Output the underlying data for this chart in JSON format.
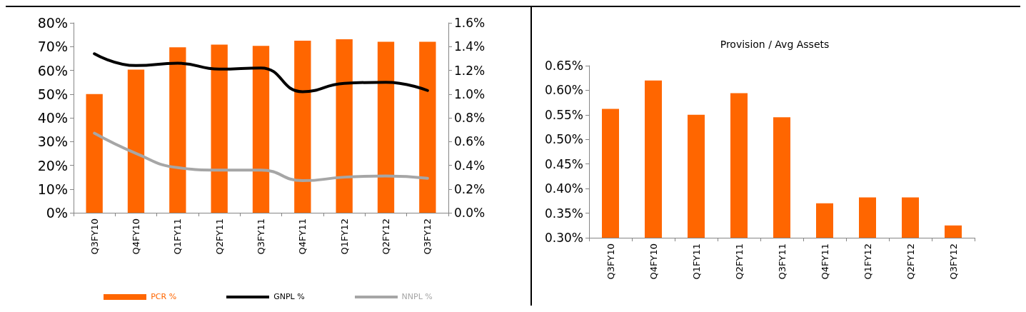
{
  "chart_data": [
    {
      "type": "bar",
      "categories": [
        "Q3FY10",
        "Q4FY10",
        "Q1FY11",
        "Q2FY11",
        "Q3FY11",
        "Q4FY11",
        "Q1FY12",
        "Q2FY12",
        "Q3FY12"
      ],
      "series": [
        {
          "name": "PCR %",
          "type": "bar",
          "color": "#ff6600",
          "values": [
            50,
            60.3,
            69.7,
            70.8,
            70.3,
            72.5,
            73.1,
            72,
            72
          ]
        },
        {
          "name": "GNPL %",
          "type": "line",
          "axis": "y2",
          "color": "#000000",
          "values": [
            1.34,
            1.24,
            1.26,
            1.21,
            1.22,
            1.02,
            1.09,
            1.1,
            1.03
          ]
        },
        {
          "name": "NNPL %",
          "type": "line",
          "axis": "y2",
          "color": "#a6a6a6",
          "values": [
            0.67,
            0.5,
            0.38,
            0.36,
            0.36,
            0.27,
            0.3,
            0.31,
            0.29
          ]
        }
      ],
      "ylim": [
        0,
        80
      ],
      "yticks": [
        {
          "value": 0,
          "label": "0%"
        },
        {
          "value": 10,
          "label": "10%"
        },
        {
          "value": 20,
          "label": "20%"
        },
        {
          "value": 30,
          "label": "30%"
        },
        {
          "value": 40,
          "label": "40%"
        },
        {
          "value": 50,
          "label": "50%"
        },
        {
          "value": 60,
          "label": "60%"
        },
        {
          "value": 70,
          "label": "70%"
        },
        {
          "value": 80,
          "label": "80%"
        }
      ],
      "y2lim": [
        0,
        1.6
      ],
      "y2ticks": [
        {
          "value": 0,
          "label": "0.0%"
        },
        {
          "value": 0.2,
          "label": "0.2%"
        },
        {
          "value": 0.4,
          "label": "0.4%"
        },
        {
          "value": 0.6,
          "label": "0.6%"
        },
        {
          "value": 0.8,
          "label": "0.8%"
        },
        {
          "value": 1,
          "label": "1.0%"
        },
        {
          "value": 1.2,
          "label": "1.2%"
        },
        {
          "value": 1.4,
          "label": "1.4%"
        },
        {
          "value": 1.6,
          "label": "1.6%"
        }
      ],
      "grid": false,
      "legend": "bottom",
      "marker": "none",
      "line_style": "solid"
    },
    {
      "type": "bar",
      "title": "Provision / Avg Assets",
      "categories": [
        "Q3FY10",
        "Q4FY10",
        "Q1FY11",
        "Q2FY11",
        "Q3FY11",
        "Q4FY11",
        "Q1FY12",
        "Q2FY12",
        "Q3FY12"
      ],
      "values": [
        0.562,
        0.62,
        0.55,
        0.594,
        0.545,
        0.37,
        0.382,
        0.382,
        0.325
      ],
      "color": "#ff6600",
      "ylim": [
        0.3,
        0.65
      ],
      "yticks": [
        {
          "value": 0.3,
          "label": "0.30%"
        },
        {
          "value": 0.35,
          "label": "0.35%"
        },
        {
          "value": 0.4,
          "label": "0.40%"
        },
        {
          "value": 0.45,
          "label": "0.45%"
        },
        {
          "value": 0.5,
          "label": "0.50%"
        },
        {
          "value": 0.55,
          "label": "0.55%"
        },
        {
          "value": 0.6,
          "label": "0.60%"
        },
        {
          "value": 0.65,
          "label": "0.65%"
        }
      ],
      "grid": false,
      "legend": false
    }
  ]
}
